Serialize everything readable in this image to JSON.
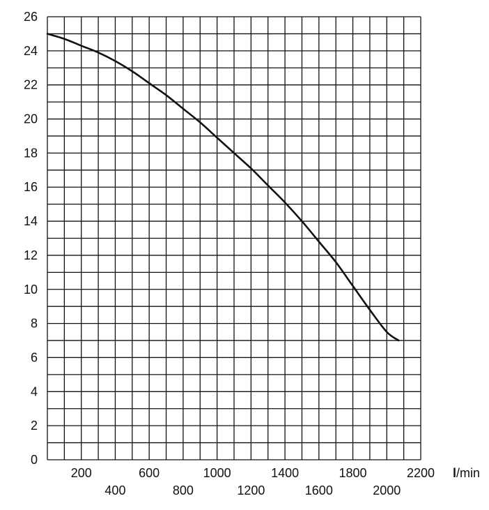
{
  "chart_data": {
    "type": "line",
    "x_unit_label": {
      "strong": "l",
      "rest": "/min"
    },
    "x_ticks_upper": [
      "200",
      "600",
      "1000",
      "1400",
      "1800",
      "2200"
    ],
    "x_ticks_lower": [
      "400",
      "800",
      "1200",
      "1600",
      "2000"
    ],
    "y_ticks": [
      "0",
      "2",
      "4",
      "6",
      "8",
      "10",
      "12",
      "14",
      "16",
      "18",
      "20",
      "22",
      "24",
      "26"
    ],
    "xlim": [
      0,
      2200
    ],
    "ylim": [
      0,
      26
    ],
    "grid": true,
    "grid_step_x": 100,
    "grid_step_y": 1,
    "colors": {
      "grid": "#111111",
      "curve": "#111111",
      "text": "#111111",
      "background": "#ffffff"
    },
    "series": [
      {
        "x": [
          0,
          100,
          200,
          300,
          400,
          500,
          600,
          700,
          800,
          900,
          1000,
          1100,
          1200,
          1300,
          1400,
          1500,
          1600,
          1700,
          1800,
          1900,
          2000,
          2070
        ],
        "y": [
          25.0,
          24.7,
          24.3,
          23.9,
          23.4,
          22.8,
          22.1,
          21.4,
          20.6,
          19.8,
          18.9,
          18.0,
          17.1,
          16.1,
          15.1,
          14.0,
          12.8,
          11.6,
          10.2,
          8.8,
          7.5,
          7.0
        ]
      }
    ]
  }
}
